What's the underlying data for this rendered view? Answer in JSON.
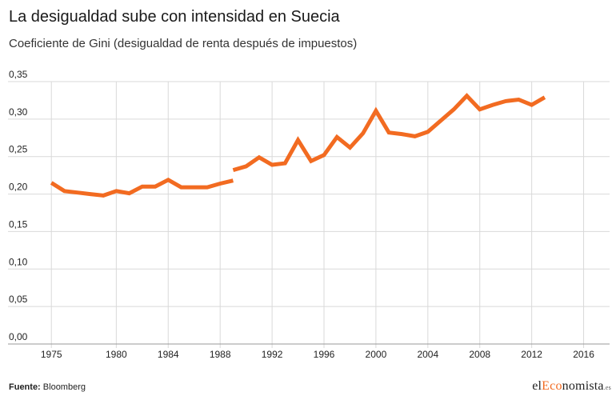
{
  "header": {
    "title": "La desigualdad sube con intensidad en Suecia",
    "subtitle": "Coeficiente de Gini (desigualdad de renta después de impuestos)"
  },
  "footer": {
    "source_label": "Fuente:",
    "source_value": " Bloomberg",
    "brand": {
      "pre": "el",
      "highlight": "Eco",
      "post": "nomista",
      "tld": ".es"
    }
  },
  "colors": {
    "line": "#f26b21",
    "grid": "#d9d9d9",
    "axis": "#999999",
    "text": "#222222"
  },
  "chart_data": {
    "type": "line",
    "title": "La desigualdad sube con intensidad en Suecia",
    "subtitle": "Coeficiente de Gini (desigualdad de renta después de impuestos)",
    "xlim": [
      1974,
      2018
    ],
    "ylim": [
      0,
      0.35
    ],
    "x_ticks": [
      1975,
      1980,
      1984,
      1988,
      1992,
      1996,
      2000,
      2004,
      2008,
      2012,
      2016
    ],
    "y_ticks": [
      0,
      0.05,
      0.1,
      0.15,
      0.2,
      0.25,
      0.3,
      0.35
    ],
    "y_tick_labels": [
      "0,00",
      "0,05",
      "0,10",
      "0,15",
      "0,20",
      "0,25",
      "0,30",
      "0,35"
    ],
    "grid": "vertical and horizontal",
    "series": [
      {
        "x": [
          1975,
          1976,
          1977,
          1978,
          1979,
          1980,
          1981,
          1982,
          1983,
          1984,
          1985,
          1986,
          1987,
          1988,
          1989,
          1990
        ],
        "y": [
          0.215,
          0.204,
          0.202,
          0.2,
          0.198,
          0.204,
          0.201,
          0.21,
          0.21,
          0.219,
          0.209,
          0.209,
          0.209,
          0.214,
          0.218,
          null
        ]
      },
      {
        "x": [
          1989,
          1990,
          1991,
          1992,
          1993,
          1994,
          1995,
          1996,
          1997,
          1998,
          1999,
          2000,
          2001,
          2002,
          2003,
          2004,
          2005,
          2006,
          2007,
          2008,
          2009,
          2010,
          2011,
          2012,
          2013
        ],
        "y": [
          0.232,
          0.237,
          0.249,
          0.239,
          0.241,
          0.272,
          0.244,
          0.252,
          0.276,
          0.262,
          0.281,
          0.311,
          0.282,
          0.28,
          0.277,
          0.283,
          0.298,
          0.313,
          0.331,
          0.313,
          0.319,
          0.324,
          0.326,
          0.319,
          0.329
        ]
      }
    ]
  }
}
